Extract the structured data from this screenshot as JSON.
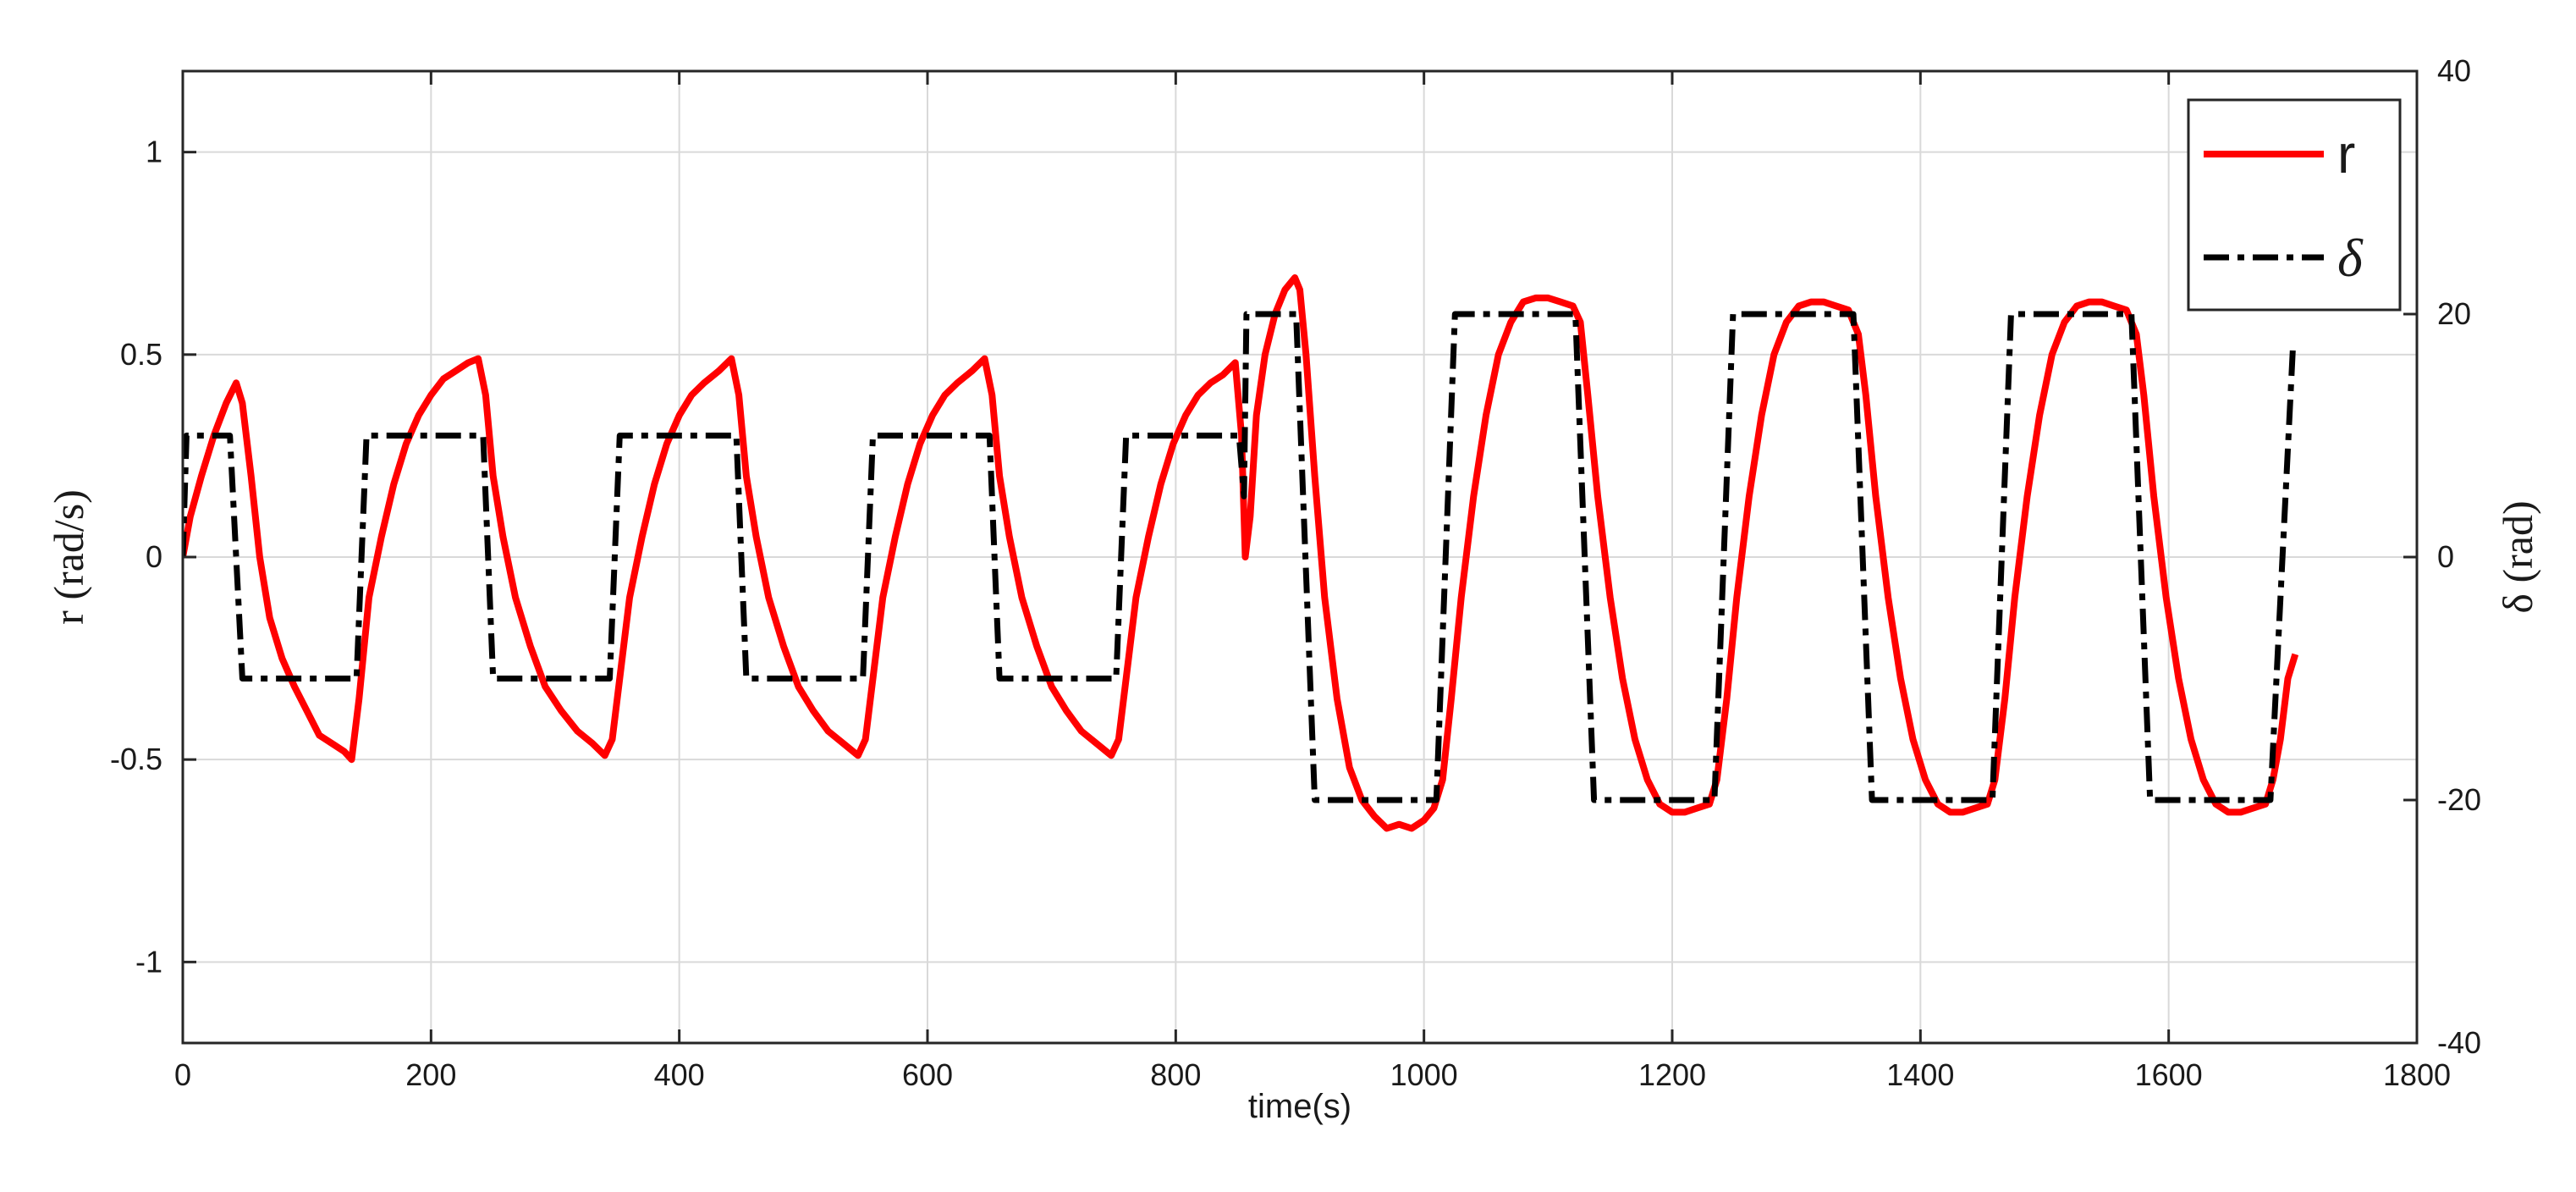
{
  "chart_data": {
    "type": "line",
    "title": "",
    "xlabel": "time(s)",
    "ylabel_left": "r (rad/s)",
    "ylabel_right": "δ (rad)",
    "xlim": [
      0,
      1800
    ],
    "ylim_left": [
      -1.2,
      1.2
    ],
    "ylim_right": [
      -40,
      40
    ],
    "grid": true,
    "legend_position": "top-right",
    "x_ticks": [
      "0",
      "200",
      "400",
      "600",
      "800",
      "1000",
      "1200",
      "1400",
      "1600",
      "1800"
    ],
    "y_left_ticks": [
      "-1",
      "-0.5",
      "0",
      "0.5",
      "1"
    ],
    "y_right_ticks": [
      "-40",
      "-20",
      "0",
      "20",
      "40"
    ],
    "series": [
      {
        "name": "r",
        "axis": "left",
        "color": "#ff0000",
        "style": "solid",
        "points": [
          [
            0,
            0.0
          ],
          [
            6,
            0.1
          ],
          [
            15,
            0.2
          ],
          [
            25,
            0.3
          ],
          [
            35,
            0.38
          ],
          [
            43,
            0.43
          ],
          [
            48,
            0.38
          ],
          [
            55,
            0.2
          ],
          [
            62,
            0.0
          ],
          [
            70,
            -0.15
          ],
          [
            80,
            -0.25
          ],
          [
            90,
            -0.32
          ],
          [
            100,
            -0.38
          ],
          [
            110,
            -0.44
          ],
          [
            120,
            -0.46
          ],
          [
            130,
            -0.48
          ],
          [
            136,
            -0.5
          ],
          [
            142,
            -0.35
          ],
          [
            150,
            -0.1
          ],
          [
            160,
            0.05
          ],
          [
            170,
            0.18
          ],
          [
            180,
            0.28
          ],
          [
            190,
            0.35
          ],
          [
            200,
            0.4
          ],
          [
            210,
            0.44
          ],
          [
            220,
            0.46
          ],
          [
            230,
            0.48
          ],
          [
            238,
            0.49
          ],
          [
            244,
            0.4
          ],
          [
            250,
            0.2
          ],
          [
            258,
            0.05
          ],
          [
            268,
            -0.1
          ],
          [
            280,
            -0.22
          ],
          [
            292,
            -0.32
          ],
          [
            305,
            -0.38
          ],
          [
            318,
            -0.43
          ],
          [
            330,
            -0.46
          ],
          [
            340,
            -0.49
          ],
          [
            346,
            -0.45
          ],
          [
            352,
            -0.3
          ],
          [
            360,
            -0.1
          ],
          [
            370,
            0.05
          ],
          [
            380,
            0.18
          ],
          [
            390,
            0.28
          ],
          [
            400,
            0.35
          ],
          [
            410,
            0.4
          ],
          [
            420,
            0.43
          ],
          [
            432,
            0.46
          ],
          [
            442,
            0.49
          ],
          [
            448,
            0.4
          ],
          [
            454,
            0.2
          ],
          [
            462,
            0.05
          ],
          [
            472,
            -0.1
          ],
          [
            484,
            -0.22
          ],
          [
            496,
            -0.32
          ],
          [
            508,
            -0.38
          ],
          [
            520,
            -0.43
          ],
          [
            532,
            -0.46
          ],
          [
            544,
            -0.49
          ],
          [
            550,
            -0.45
          ],
          [
            556,
            -0.3
          ],
          [
            564,
            -0.1
          ],
          [
            574,
            0.05
          ],
          [
            584,
            0.18
          ],
          [
            594,
            0.28
          ],
          [
            604,
            0.35
          ],
          [
            614,
            0.4
          ],
          [
            624,
            0.43
          ],
          [
            636,
            0.46
          ],
          [
            646,
            0.49
          ],
          [
            652,
            0.4
          ],
          [
            658,
            0.2
          ],
          [
            666,
            0.05
          ],
          [
            676,
            -0.1
          ],
          [
            688,
            -0.22
          ],
          [
            700,
            -0.32
          ],
          [
            712,
            -0.38
          ],
          [
            724,
            -0.43
          ],
          [
            736,
            -0.46
          ],
          [
            748,
            -0.49
          ],
          [
            754,
            -0.45
          ],
          [
            760,
            -0.3
          ],
          [
            768,
            -0.1
          ],
          [
            778,
            0.05
          ],
          [
            788,
            0.18
          ],
          [
            798,
            0.28
          ],
          [
            808,
            0.35
          ],
          [
            818,
            0.4
          ],
          [
            828,
            0.43
          ],
          [
            838,
            0.45
          ],
          [
            848,
            0.48
          ],
          [
            853,
            0.3
          ],
          [
            856,
            0.0
          ],
          [
            860,
            0.1
          ],
          [
            865,
            0.35
          ],
          [
            872,
            0.5
          ],
          [
            880,
            0.6
          ],
          [
            888,
            0.66
          ],
          [
            896,
            0.69
          ],
          [
            900,
            0.66
          ],
          [
            905,
            0.5
          ],
          [
            912,
            0.2
          ],
          [
            920,
            -0.1
          ],
          [
            930,
            -0.35
          ],
          [
            940,
            -0.52
          ],
          [
            950,
            -0.6
          ],
          [
            960,
            -0.64
          ],
          [
            970,
            -0.67
          ],
          [
            980,
            -0.66
          ],
          [
            990,
            -0.67
          ],
          [
            1000,
            -0.65
          ],
          [
            1008,
            -0.62
          ],
          [
            1015,
            -0.55
          ],
          [
            1022,
            -0.35
          ],
          [
            1030,
            -0.1
          ],
          [
            1040,
            0.15
          ],
          [
            1050,
            0.35
          ],
          [
            1060,
            0.5
          ],
          [
            1070,
            0.58
          ],
          [
            1080,
            0.63
          ],
          [
            1090,
            0.64
          ],
          [
            1100,
            0.64
          ],
          [
            1110,
            0.63
          ],
          [
            1120,
            0.62
          ],
          [
            1126,
            0.58
          ],
          [
            1132,
            0.4
          ],
          [
            1140,
            0.15
          ],
          [
            1150,
            -0.1
          ],
          [
            1160,
            -0.3
          ],
          [
            1170,
            -0.45
          ],
          [
            1180,
            -0.55
          ],
          [
            1190,
            -0.61
          ],
          [
            1200,
            -0.63
          ],
          [
            1210,
            -0.63
          ],
          [
            1220,
            -0.62
          ],
          [
            1230,
            -0.61
          ],
          [
            1236,
            -0.55
          ],
          [
            1244,
            -0.35
          ],
          [
            1252,
            -0.1
          ],
          [
            1262,
            0.15
          ],
          [
            1272,
            0.35
          ],
          [
            1282,
            0.5
          ],
          [
            1292,
            0.58
          ],
          [
            1302,
            0.62
          ],
          [
            1312,
            0.63
          ],
          [
            1322,
            0.63
          ],
          [
            1332,
            0.62
          ],
          [
            1342,
            0.61
          ],
          [
            1350,
            0.55
          ],
          [
            1356,
            0.4
          ],
          [
            1364,
            0.15
          ],
          [
            1374,
            -0.1
          ],
          [
            1384,
            -0.3
          ],
          [
            1394,
            -0.45
          ],
          [
            1404,
            -0.55
          ],
          [
            1414,
            -0.61
          ],
          [
            1424,
            -0.63
          ],
          [
            1434,
            -0.63
          ],
          [
            1444,
            -0.62
          ],
          [
            1454,
            -0.61
          ],
          [
            1460,
            -0.55
          ],
          [
            1468,
            -0.35
          ],
          [
            1476,
            -0.1
          ],
          [
            1486,
            0.15
          ],
          [
            1496,
            0.35
          ],
          [
            1506,
            0.5
          ],
          [
            1516,
            0.58
          ],
          [
            1526,
            0.62
          ],
          [
            1536,
            0.63
          ],
          [
            1546,
            0.63
          ],
          [
            1556,
            0.62
          ],
          [
            1566,
            0.61
          ],
          [
            1574,
            0.55
          ],
          [
            1580,
            0.4
          ],
          [
            1588,
            0.15
          ],
          [
            1598,
            -0.1
          ],
          [
            1608,
            -0.3
          ],
          [
            1618,
            -0.45
          ],
          [
            1628,
            -0.55
          ],
          [
            1638,
            -0.61
          ],
          [
            1648,
            -0.63
          ],
          [
            1658,
            -0.63
          ],
          [
            1668,
            -0.62
          ],
          [
            1678,
            -0.61
          ],
          [
            1684,
            -0.55
          ],
          [
            1690,
            -0.45
          ],
          [
            1696,
            -0.3
          ],
          [
            1702,
            -0.24
          ]
        ]
      },
      {
        "name": "δ",
        "axis": "right",
        "color": "#000000",
        "style": "dashdot",
        "points": [
          [
            0,
            0
          ],
          [
            3,
            10
          ],
          [
            38,
            10
          ],
          [
            48,
            -10
          ],
          [
            140,
            -10
          ],
          [
            148,
            10
          ],
          [
            242,
            10
          ],
          [
            250,
            -10
          ],
          [
            344,
            -10
          ],
          [
            352,
            10
          ],
          [
            446,
            10
          ],
          [
            454,
            -10
          ],
          [
            548,
            -10
          ],
          [
            556,
            10
          ],
          [
            650,
            10
          ],
          [
            658,
            -10
          ],
          [
            752,
            -10
          ],
          [
            760,
            10
          ],
          [
            851,
            10
          ],
          [
            855,
            5
          ],
          [
            857,
            20
          ],
          [
            897,
            20
          ],
          [
            912,
            -20
          ],
          [
            1010,
            -20
          ],
          [
            1025,
            20
          ],
          [
            1122,
            20
          ],
          [
            1137,
            -20
          ],
          [
            1234,
            -20
          ],
          [
            1249,
            20
          ],
          [
            1346,
            20
          ],
          [
            1361,
            -20
          ],
          [
            1458,
            -20
          ],
          [
            1473,
            20
          ],
          [
            1570,
            20
          ],
          [
            1585,
            -20
          ],
          [
            1682,
            -20
          ],
          [
            1700,
            17
          ]
        ]
      }
    ]
  }
}
